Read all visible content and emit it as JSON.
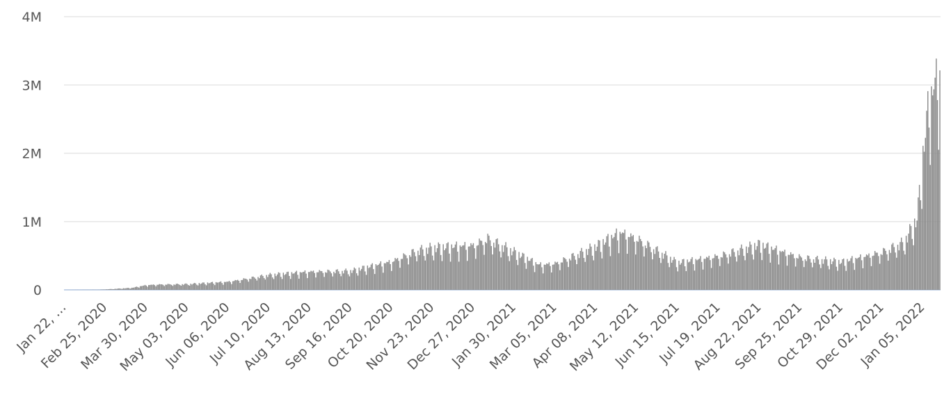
{
  "chart_data": {
    "type": "bar",
    "title": "",
    "xlabel": "",
    "ylabel": "",
    "ylim": [
      0,
      4000000
    ],
    "grid": true,
    "legend": "none",
    "bar_color": "#8c8c8c",
    "baseline_color": "#c5d3e8",
    "grid_color": "#e6e6e6",
    "y_ticks": [
      {
        "value": 0,
        "label": "0"
      },
      {
        "value": 1000000,
        "label": "1M"
      },
      {
        "value": 2000000,
        "label": "2M"
      },
      {
        "value": 3000000,
        "label": "3M"
      },
      {
        "value": 4000000,
        "label": "4M"
      }
    ],
    "x_start": "2020-01-22",
    "x_end": "2022-01-19",
    "x_tick_labels": [
      {
        "date": "2020-01-22",
        "label": "Jan 22, …"
      },
      {
        "date": "2020-02-25",
        "label": "Feb 25, 2020"
      },
      {
        "date": "2020-03-30",
        "label": "Mar 30, 2020"
      },
      {
        "date": "2020-05-03",
        "label": "May 03, 2020"
      },
      {
        "date": "2020-06-06",
        "label": "Jun 06, 2020"
      },
      {
        "date": "2020-07-10",
        "label": "Jul 10, 2020"
      },
      {
        "date": "2020-08-13",
        "label": "Aug 13, 2020"
      },
      {
        "date": "2020-09-16",
        "label": "Sep 16, 2020"
      },
      {
        "date": "2020-10-20",
        "label": "Oct 20, 2020"
      },
      {
        "date": "2020-11-23",
        "label": "Nov 23, 2020"
      },
      {
        "date": "2020-12-27",
        "label": "Dec 27, 2020"
      },
      {
        "date": "2021-01-30",
        "label": "Jan 30, 2021"
      },
      {
        "date": "2021-03-05",
        "label": "Mar 05, 2021"
      },
      {
        "date": "2021-04-08",
        "label": "Apr 08, 2021"
      },
      {
        "date": "2021-05-12",
        "label": "May 12, 2021"
      },
      {
        "date": "2021-06-15",
        "label": "Jun 15, 2021"
      },
      {
        "date": "2021-07-19",
        "label": "Jul 19, 2021"
      },
      {
        "date": "2021-08-22",
        "label": "Aug 22, 2021"
      },
      {
        "date": "2021-09-25",
        "label": "Sep 25, 2021"
      },
      {
        "date": "2021-10-29",
        "label": "Oct 29, 2021"
      },
      {
        "date": "2021-12-02",
        "label": "Dec 02, 2021"
      },
      {
        "date": "2022-01-05",
        "label": "Jan 05, 2022"
      }
    ],
    "trend_points": [
      {
        "date": "2020-01-22",
        "value": 0
      },
      {
        "date": "2020-02-20",
        "value": 2000
      },
      {
        "date": "2020-03-18",
        "value": 30000
      },
      {
        "date": "2020-03-30",
        "value": 70000
      },
      {
        "date": "2020-04-10",
        "value": 80000
      },
      {
        "date": "2020-05-03",
        "value": 85000
      },
      {
        "date": "2020-06-06",
        "value": 120000
      },
      {
        "date": "2020-07-10",
        "value": 220000
      },
      {
        "date": "2020-08-13",
        "value": 270000
      },
      {
        "date": "2020-09-16",
        "value": 280000
      },
      {
        "date": "2020-10-20",
        "value": 420000
      },
      {
        "date": "2020-11-10",
        "value": 580000
      },
      {
        "date": "2020-11-23",
        "value": 620000
      },
      {
        "date": "2020-12-27",
        "value": 660000
      },
      {
        "date": "2021-01-08",
        "value": 760000
      },
      {
        "date": "2021-01-30",
        "value": 560000
      },
      {
        "date": "2021-02-20",
        "value": 370000
      },
      {
        "date": "2021-03-05",
        "value": 390000
      },
      {
        "date": "2021-04-08",
        "value": 640000
      },
      {
        "date": "2021-04-28",
        "value": 850000
      },
      {
        "date": "2021-05-12",
        "value": 760000
      },
      {
        "date": "2021-06-15",
        "value": 400000
      },
      {
        "date": "2021-07-19",
        "value": 500000
      },
      {
        "date": "2021-08-22",
        "value": 670000
      },
      {
        "date": "2021-09-25",
        "value": 480000
      },
      {
        "date": "2021-10-29",
        "value": 410000
      },
      {
        "date": "2021-12-02",
        "value": 560000
      },
      {
        "date": "2021-12-20",
        "value": 700000
      },
      {
        "date": "2021-12-31",
        "value": 1050000
      },
      {
        "date": "2022-01-03",
        "value": 1600000
      },
      {
        "date": "2022-01-05",
        "value": 2000000
      },
      {
        "date": "2022-01-10",
        "value": 2800000
      },
      {
        "date": "2022-01-19",
        "value": 3250000
      }
    ],
    "weekly_dip_factor": 0.68,
    "values_note": ""
  }
}
